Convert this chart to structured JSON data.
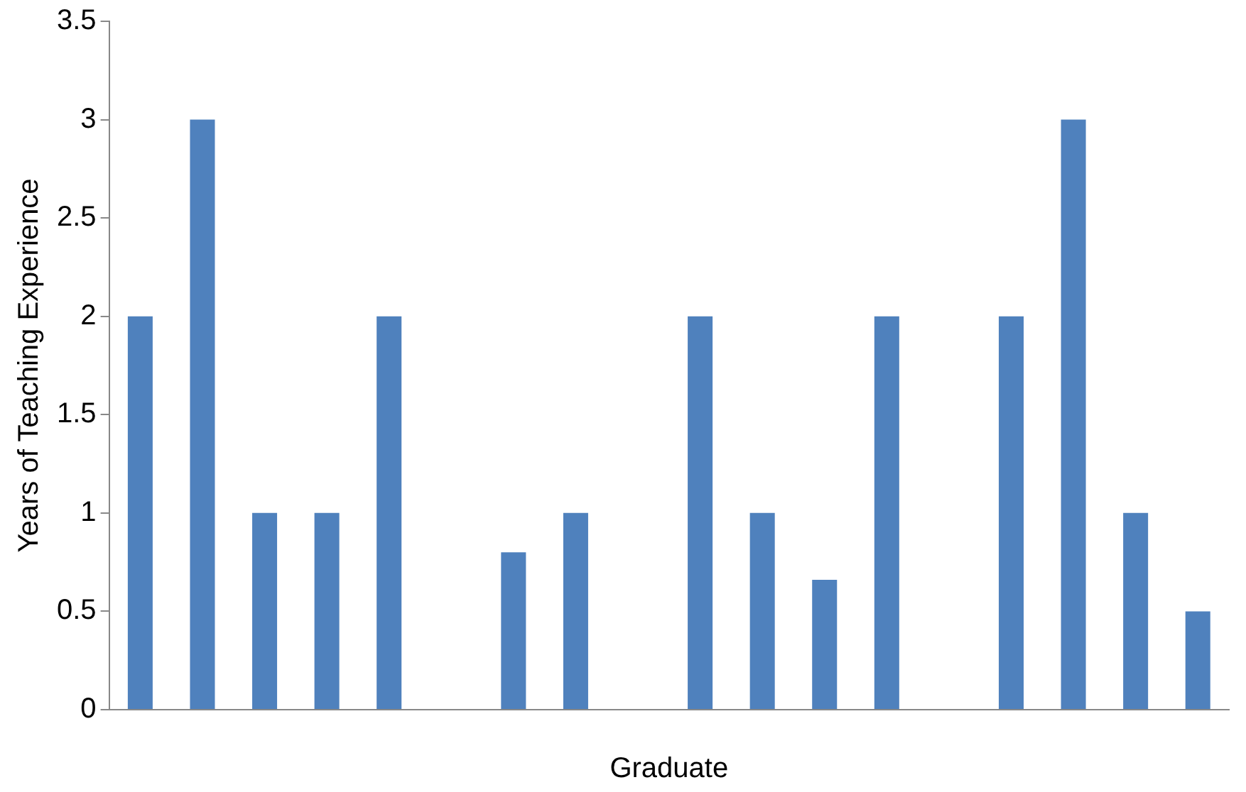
{
  "chart_data": {
    "type": "bar",
    "xlabel": "Graduate",
    "ylabel": "Years of Teaching Experience",
    "categories": [
      null,
      null,
      null,
      null,
      null,
      null,
      null,
      null,
      null,
      null,
      null,
      null,
      null,
      null,
      null,
      null,
      null,
      null
    ],
    "values": [
      2,
      3,
      1,
      1,
      2,
      null,
      0.8,
      1,
      null,
      2,
      1,
      0.66,
      2,
      null,
      2,
      3,
      1,
      0.5
    ],
    "color": "#4f81bd",
    "ylim": [
      0,
      3.5
    ],
    "yticks": [
      0,
      0.5,
      1,
      1.5,
      2,
      2.5,
      3,
      3.5
    ],
    "grid": false,
    "legend": false
  }
}
